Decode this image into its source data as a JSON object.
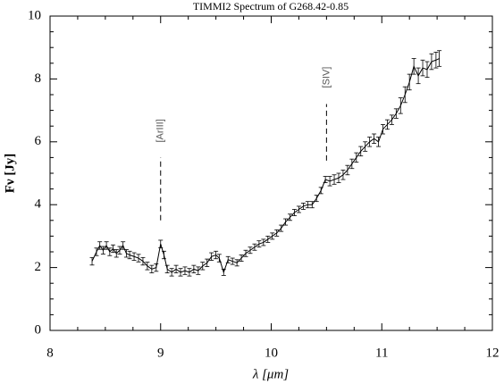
{
  "chart_data": {
    "type": "line",
    "title": "TIMMI2 Spectrum of G268.42-0.85",
    "xlabel": "λ [μm]",
    "ylabel": "Fν [Jy]",
    "color": "#000000",
    "xlim": [
      8,
      12
    ],
    "ylim": [
      0,
      10
    ],
    "xticks": [
      8,
      9,
      10,
      11,
      12
    ],
    "yticks": [
      0,
      2,
      4,
      6,
      8,
      10
    ],
    "x": [
      8.38,
      8.42,
      8.45,
      8.48,
      8.51,
      8.54,
      8.57,
      8.6,
      8.63,
      8.66,
      8.69,
      8.72,
      8.76,
      8.8,
      8.84,
      8.88,
      8.92,
      8.96,
      9.0,
      9.03,
      9.06,
      9.1,
      9.14,
      9.18,
      9.22,
      9.26,
      9.3,
      9.34,
      9.38,
      9.42,
      9.46,
      9.5,
      9.53,
      9.57,
      9.61,
      9.65,
      9.69,
      9.73,
      9.77,
      9.81,
      9.85,
      9.89,
      9.93,
      9.97,
      10.01,
      10.05,
      10.09,
      10.13,
      10.17,
      10.21,
      10.25,
      10.29,
      10.33,
      10.37,
      10.41,
      10.45,
      10.49,
      10.53,
      10.57,
      10.61,
      10.65,
      10.69,
      10.73,
      10.77,
      10.81,
      10.85,
      10.89,
      10.93,
      10.97,
      11.01,
      11.05,
      11.09,
      11.13,
      11.17,
      11.21,
      11.25,
      11.29,
      11.33,
      11.37,
      11.41,
      11.45,
      11.49,
      11.52
    ],
    "values": [
      2.2,
      2.5,
      2.7,
      2.55,
      2.7,
      2.5,
      2.6,
      2.45,
      2.55,
      2.7,
      2.45,
      2.4,
      2.35,
      2.3,
      2.2,
      2.05,
      1.95,
      2.0,
      2.75,
      2.4,
      1.95,
      1.85,
      1.95,
      1.85,
      1.9,
      1.85,
      1.95,
      1.9,
      2.05,
      2.15,
      2.35,
      2.4,
      2.3,
      1.85,
      2.25,
      2.2,
      2.15,
      2.3,
      2.45,
      2.55,
      2.65,
      2.75,
      2.8,
      2.9,
      3.0,
      3.1,
      3.25,
      3.45,
      3.6,
      3.75,
      3.85,
      3.95,
      4.0,
      4.0,
      4.2,
      4.45,
      4.8,
      4.75,
      4.8,
      4.85,
      4.95,
      5.1,
      5.3,
      5.5,
      5.7,
      5.85,
      6.0,
      6.1,
      6.0,
      6.4,
      6.55,
      6.7,
      6.9,
      7.15,
      7.5,
      7.9,
      8.4,
      8.1,
      8.35,
      8.3,
      8.55,
      8.6,
      8.65
    ],
    "errors": [
      0.12,
      0.12,
      0.12,
      0.12,
      0.12,
      0.12,
      0.12,
      0.12,
      0.12,
      0.12,
      0.12,
      0.12,
      0.12,
      0.12,
      0.12,
      0.12,
      0.12,
      0.12,
      0.12,
      0.12,
      0.12,
      0.12,
      0.12,
      0.12,
      0.12,
      0.12,
      0.12,
      0.12,
      0.12,
      0.12,
      0.12,
      0.12,
      0.12,
      0.1,
      0.1,
      0.1,
      0.1,
      0.1,
      0.1,
      0.1,
      0.1,
      0.1,
      0.1,
      0.1,
      0.1,
      0.1,
      0.1,
      0.1,
      0.1,
      0.1,
      0.1,
      0.1,
      0.1,
      0.1,
      0.1,
      0.1,
      0.1,
      0.15,
      0.15,
      0.15,
      0.15,
      0.15,
      0.15,
      0.15,
      0.15,
      0.15,
      0.15,
      0.15,
      0.15,
      0.15,
      0.15,
      0.15,
      0.15,
      0.25,
      0.25,
      0.25,
      0.25,
      0.25,
      0.25,
      0.25,
      0.25,
      0.25,
      0.25
    ],
    "annotations": [
      {
        "label": "[ArIII]",
        "x": 9.0,
        "line": [
          3.5,
          5.5
        ]
      },
      {
        "label": "[SIV]",
        "x": 10.5,
        "line": [
          5.4,
          7.2
        ]
      }
    ]
  }
}
